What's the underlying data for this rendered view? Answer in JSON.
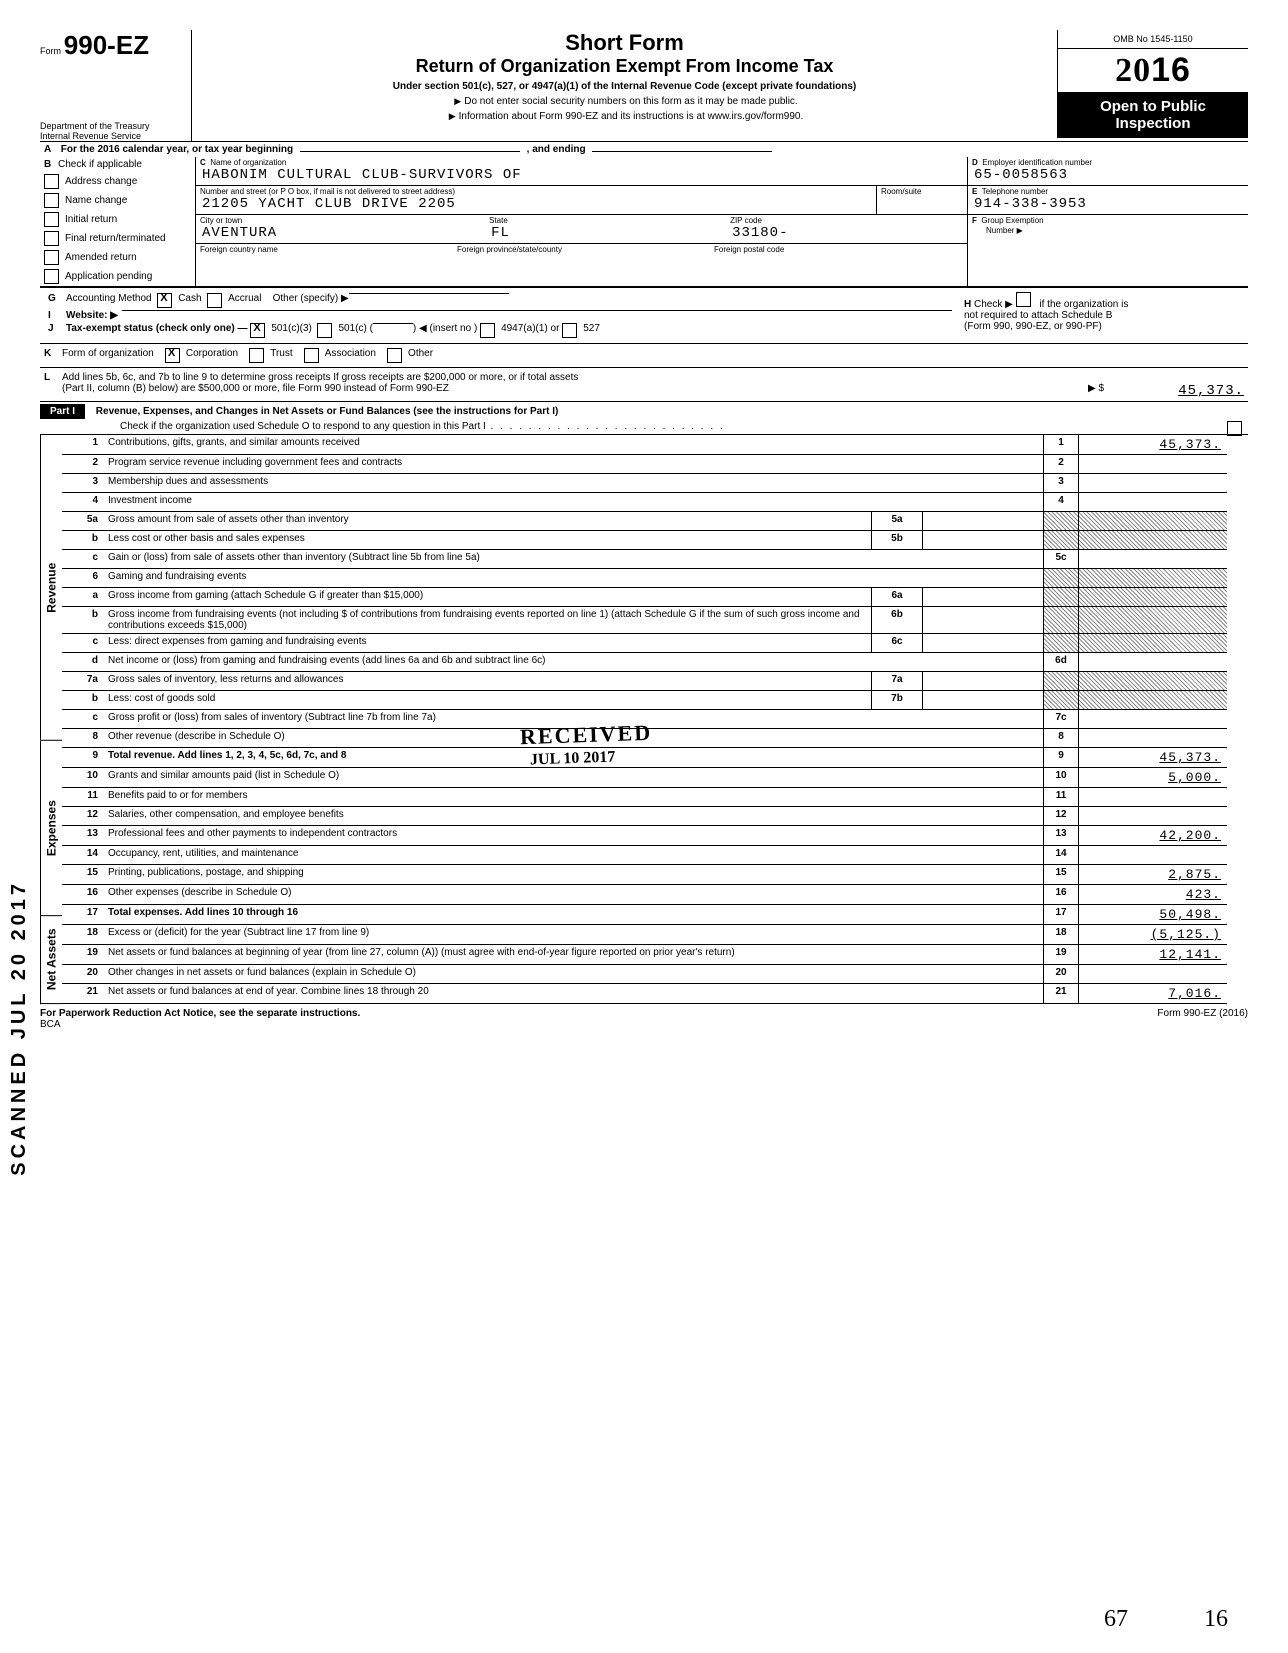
{
  "header": {
    "form_label_small": "Form",
    "form_number": "990-EZ",
    "dept1": "Department of the Treasury",
    "dept2": "Internal Revenue Service",
    "title": "Short Form",
    "subtitle": "Return of Organization Exempt From Income Tax",
    "under": "Under section 501(c), 527, or 4947(a)(1) of the Internal Revenue Code (except private foundations)",
    "note1": "Do not enter social security numbers on this form as it may be made public.",
    "note2": "Information about Form 990-EZ and its instructions is at www.irs.gov/form990.",
    "omb": "OMB No 1545-1150",
    "year": "2016",
    "open1": "Open to Public",
    "open2": "Inspection"
  },
  "A": {
    "text": "For the 2016 calendar year, or tax year beginning",
    "mid": ", and ending"
  },
  "B": {
    "label": "Check if applicable",
    "items": [
      "Address change",
      "Name change",
      "Initial return",
      "Final return/terminated",
      "Amended return",
      "Application pending"
    ]
  },
  "C": {
    "name_label": "Name of organization",
    "name": "HABONIM CULTURAL CLUB-SURVIVORS OF",
    "addr_label": "Number and street (or P O  box, if mail is not delivered to street address)",
    "room_label": "Room/suite",
    "addr": "21205 YACHT CLUB DRIVE 2205",
    "city_label": "City or town",
    "state_label": "State",
    "zip_label": "ZIP code",
    "city": "AVENTURA",
    "state": "FL",
    "zip": "33180-",
    "foreign_country_label": "Foreign country name",
    "foreign_prov_label": "Foreign province/state/county",
    "foreign_postal_label": "Foreign postal code"
  },
  "D": {
    "label": "Employer identification number",
    "value": "65-0058563"
  },
  "E": {
    "label": "Telephone number",
    "value": "914-338-3953"
  },
  "F": {
    "label": "Group Exemption",
    "label2": "Number ▶"
  },
  "G": {
    "label": "Accounting Method",
    "cash": "Cash",
    "accrual": "Accrual",
    "other": "Other (specify) ▶"
  },
  "H": {
    "text1": "Check ▶",
    "text2": "if the organization is",
    "text3": "not required to attach Schedule B",
    "text4": "(Form 990, 990-EZ, or 990-PF)"
  },
  "I": {
    "label": "Website: ▶"
  },
  "J": {
    "label": "Tax-exempt status (check only one) —",
    "c3": "501(c)(3)",
    "c": "501(c) (",
    "insert": ") ◀ (insert no )",
    "a1": "4947(a)(1) or",
    "527": "527"
  },
  "K": {
    "label": "Form of organization",
    "corp": "Corporation",
    "trust": "Trust",
    "assoc": "Association",
    "other": "Other"
  },
  "L": {
    "text": "Add lines 5b, 6c, and 7b to line 9 to determine gross receipts  If gross receipts are $200,000 or more, or if total assets",
    "text2": "(Part II, column (B) below) are $500,000 or more, file Form 990 instead of Form 990-EZ",
    "amount": "45,373."
  },
  "partI": {
    "label": "Part I",
    "title": "Revenue, Expenses, and Changes in Net Assets or Fund Balances (see the instructions for Part I)",
    "check": "Check if the organization used Schedule O to respond to any question in this Part I"
  },
  "strips": {
    "rev": "Revenue",
    "exp": "Expenses",
    "na": "Net Assets"
  },
  "lines": {
    "1": {
      "n": "1",
      "d": "Contributions, gifts, grants, and similar amounts received",
      "r": "1",
      "a": "45,373."
    },
    "2": {
      "n": "2",
      "d": "Program service revenue including government fees and contracts",
      "r": "2",
      "a": ""
    },
    "3": {
      "n": "3",
      "d": "Membership dues and assessments",
      "r": "3",
      "a": ""
    },
    "4": {
      "n": "4",
      "d": "Investment income",
      "r": "4",
      "a": ""
    },
    "5a": {
      "n": "5a",
      "d": "Gross amount from sale of assets other than inventory",
      "m": "5a"
    },
    "5b": {
      "n": "b",
      "d": "Less cost or other basis and sales expenses",
      "m": "5b"
    },
    "5c": {
      "n": "c",
      "d": "Gain or (loss) from sale of assets other than inventory (Subtract line 5b from line 5a)",
      "r": "5c",
      "a": ""
    },
    "6": {
      "n": "6",
      "d": "Gaming and fundraising events"
    },
    "6a": {
      "n": "a",
      "d": "Gross income from gaming (attach Schedule G if greater than $15,000)",
      "m": "6a"
    },
    "6b": {
      "n": "b",
      "d": "Gross income from fundraising events (not including $            of contributions from fundraising events reported on line 1) (attach Schedule G if the sum of such gross income and contributions exceeds $15,000)",
      "m": "6b"
    },
    "6c": {
      "n": "c",
      "d": "Less: direct expenses from gaming and fundraising events",
      "m": "6c"
    },
    "6d": {
      "n": "d",
      "d": "Net income or (loss) from gaming and fundraising events (add lines 6a and 6b and subtract line 6c)",
      "r": "6d",
      "a": ""
    },
    "7a": {
      "n": "7a",
      "d": "Gross sales of inventory, less returns and allowances",
      "m": "7a"
    },
    "7b": {
      "n": "b",
      "d": "Less: cost of goods sold",
      "m": "7b"
    },
    "7c": {
      "n": "c",
      "d": "Gross profit or (loss) from sales of inventory (Subtract line 7b from line 7a)",
      "r": "7c",
      "a": ""
    },
    "8": {
      "n": "8",
      "d": "Other revenue (describe in Schedule O)",
      "r": "8",
      "a": ""
    },
    "9": {
      "n": "9",
      "d": "Total revenue. Add lines 1, 2, 3, 4, 5c, 6d, 7c, and 8",
      "r": "9",
      "a": "45,373."
    },
    "10": {
      "n": "10",
      "d": "Grants and similar amounts paid (list in Schedule O)",
      "r": "10",
      "a": "5,000."
    },
    "11": {
      "n": "11",
      "d": "Benefits paid to or for members",
      "r": "11",
      "a": ""
    },
    "12": {
      "n": "12",
      "d": "Salaries, other compensation, and employee benefits",
      "r": "12",
      "a": ""
    },
    "13": {
      "n": "13",
      "d": "Professional fees and other payments to independent contractors",
      "r": "13",
      "a": "42,200."
    },
    "14": {
      "n": "14",
      "d": "Occupancy, rent, utilities, and maintenance",
      "r": "14",
      "a": ""
    },
    "15": {
      "n": "15",
      "d": "Printing, publications, postage, and shipping",
      "r": "15",
      "a": "2,875."
    },
    "16": {
      "n": "16",
      "d": "Other expenses (describe in Schedule O)",
      "r": "16",
      "a": "423."
    },
    "17": {
      "n": "17",
      "d": "Total expenses. Add lines 10 through 16",
      "r": "17",
      "a": "50,498."
    },
    "18": {
      "n": "18",
      "d": "Excess or (deficit) for the year (Subtract line 17 from line 9)",
      "r": "18",
      "a": "(5,125.)"
    },
    "19": {
      "n": "19",
      "d": "Net assets or fund balances at beginning of year (from line 27, column (A)) (must agree with end-of-year figure reported on prior year's return)",
      "r": "19",
      "a": "12,141."
    },
    "20": {
      "n": "20",
      "d": "Other changes in net assets or fund balances (explain in Schedule O)",
      "r": "20",
      "a": ""
    },
    "21": {
      "n": "21",
      "d": "Net assets or fund balances at end of year. Combine lines 18 through 20",
      "r": "21",
      "a": "7,016."
    }
  },
  "footer": {
    "left": "For Paperwork Reduction Act Notice, see the separate instructions.",
    "bca": "BCA",
    "right": "Form 990-EZ (2016)"
  },
  "stamps": {
    "received": "RECEIVED",
    "received_date": "JUL 10 2017",
    "scanned": "SCANNED JUL 20 2017",
    "hand1": "67",
    "hand2": "16"
  }
}
